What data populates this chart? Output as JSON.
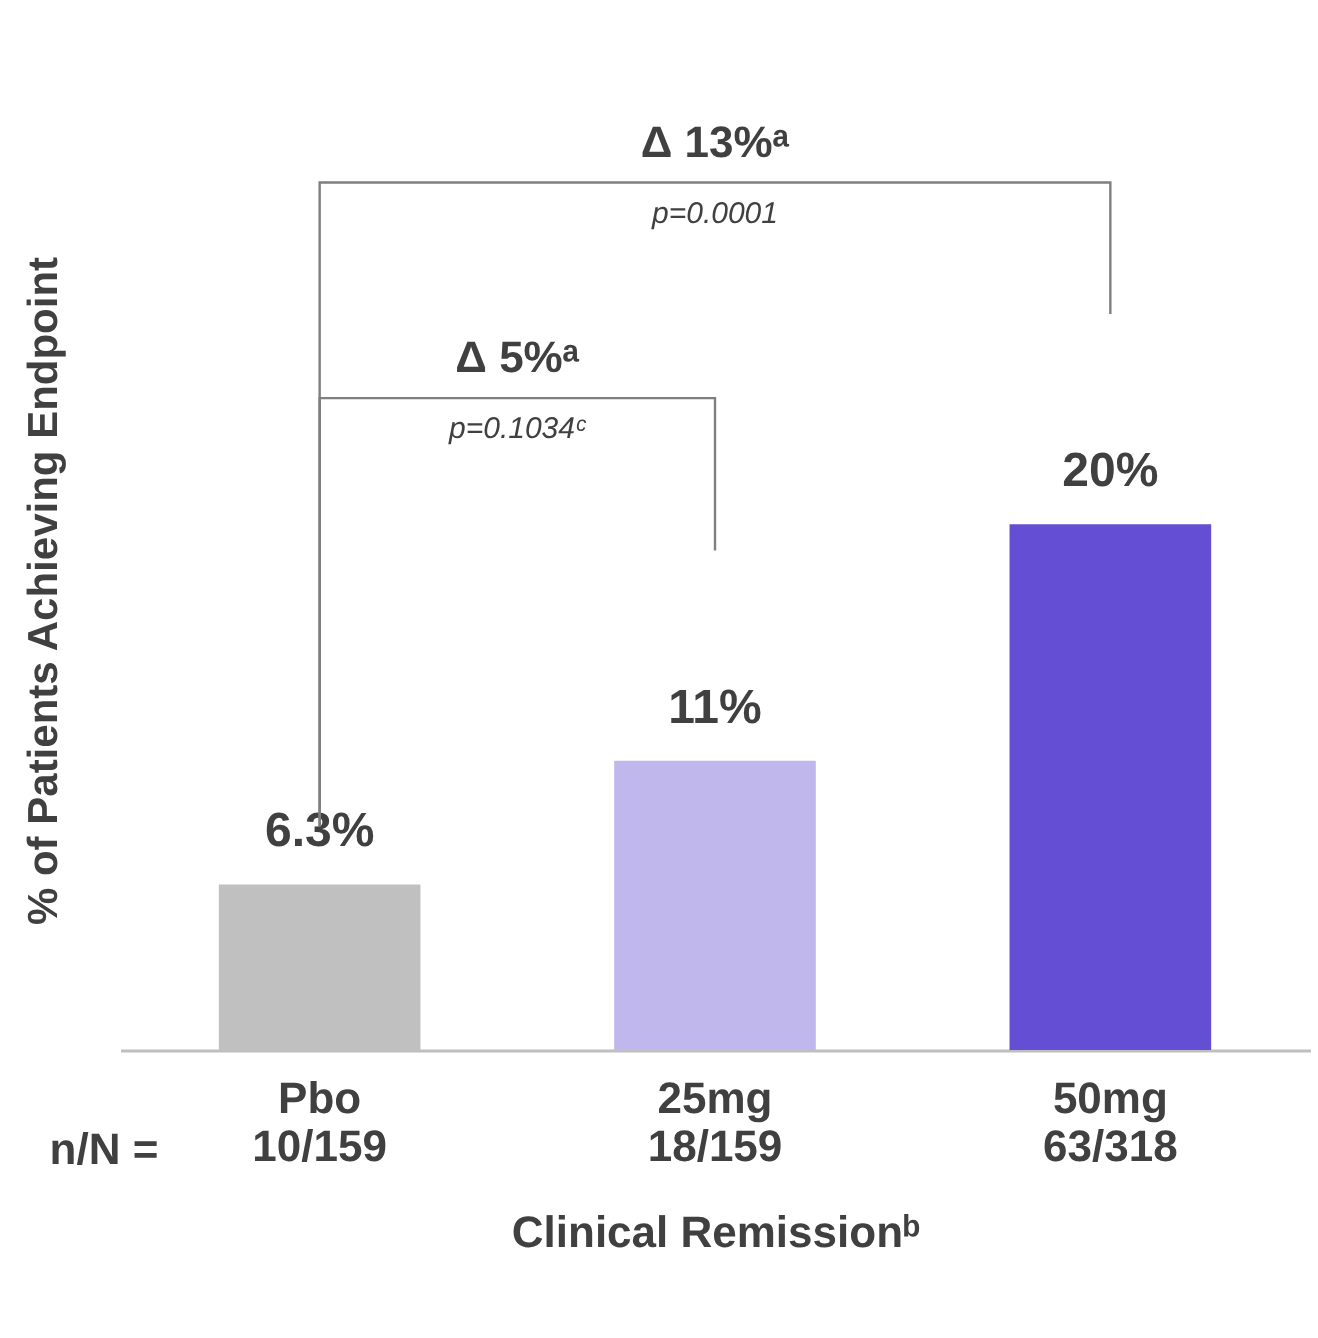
{
  "chart_data": {
    "type": "bar",
    "categories": [
      "Pbo\n10/159",
      "25mg\n18/159",
      "50mg\n63/318"
    ],
    "values": [
      6.3,
      11,
      20
    ],
    "colors": [
      "#c0c0c0",
      "#c0b8ec",
      "#644fd4"
    ],
    "value_labels": [
      "6.3%",
      "11%",
      "20%"
    ],
    "xlabel": "Clinical Remissionᵇ",
    "ylabel": "% of Patients Achieving Endpoint",
    "annotations": [
      "n/N =",
      "Δ 13%ᵃ",
      "p=0.0001",
      "Δ 5%ᵃ",
      "p=0.1034ᶜ"
    ],
    "grid": false
  }
}
